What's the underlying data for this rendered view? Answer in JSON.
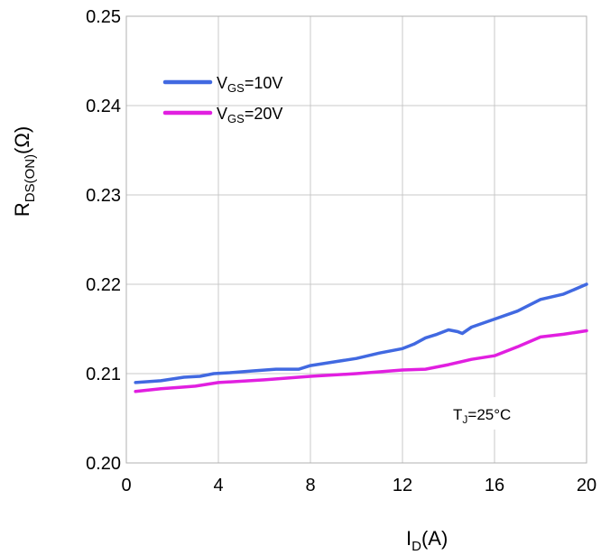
{
  "chart_data": {
    "type": "line",
    "xlabel": {
      "main": "I",
      "sub": "D",
      "rest": "(A)"
    },
    "ylabel": {
      "main": "R",
      "sub": "DS(ON)",
      "rest": "(Ω)"
    },
    "xlim": [
      0,
      20
    ],
    "ylim": [
      0.2,
      0.25
    ],
    "x_ticks": [
      0,
      4,
      8,
      12,
      16,
      20
    ],
    "x_tick_labels": [
      "0",
      "4",
      "8",
      "12",
      "16",
      "20"
    ],
    "y_ticks": [
      0.2,
      0.21,
      0.22,
      0.23,
      0.24,
      0.25
    ],
    "y_tick_labels": [
      "0.20",
      "0.21",
      "0.22",
      "0.23",
      "0.24",
      "0.25"
    ],
    "grid": true,
    "legend_position": "top-left",
    "annotation": {
      "main": "T",
      "sub": "J",
      "rest": "=25°C"
    },
    "series": [
      {
        "name": {
          "main": "V",
          "sub": "GS",
          "rest": "=10V"
        },
        "color": "#4169e1",
        "x": [
          0.4,
          1.5,
          2.5,
          3.2,
          3.8,
          4.5,
          5.5,
          6.5,
          7.5,
          8.0,
          9.0,
          10.0,
          11.0,
          12.0,
          12.5,
          13.0,
          13.5,
          14.0,
          14.4,
          14.6,
          15.0,
          16.0,
          17.0,
          18.0,
          19.0,
          20.0
        ],
        "values": [
          0.209,
          0.2092,
          0.2096,
          0.2097,
          0.21,
          0.2101,
          0.2103,
          0.2105,
          0.2105,
          0.2109,
          0.2113,
          0.2117,
          0.2123,
          0.2128,
          0.2133,
          0.214,
          0.2144,
          0.2149,
          0.2147,
          0.2145,
          0.2152,
          0.2161,
          0.217,
          0.2183,
          0.2189,
          0.22
        ]
      },
      {
        "name": {
          "main": "V",
          "sub": "GS",
          "rest": "=20V"
        },
        "color": "#e11fe0",
        "x": [
          0.4,
          1.5,
          2.5,
          3.0,
          4.0,
          6.0,
          8.0,
          10.0,
          12.0,
          13.0,
          14.0,
          15.0,
          16.0,
          17.0,
          18.0,
          19.0,
          20.0
        ],
        "values": [
          0.208,
          0.2083,
          0.2085,
          0.2086,
          0.209,
          0.2093,
          0.2097,
          0.21,
          0.2104,
          0.2105,
          0.211,
          0.2116,
          0.212,
          0.213,
          0.2141,
          0.2144,
          0.2148
        ]
      }
    ]
  }
}
